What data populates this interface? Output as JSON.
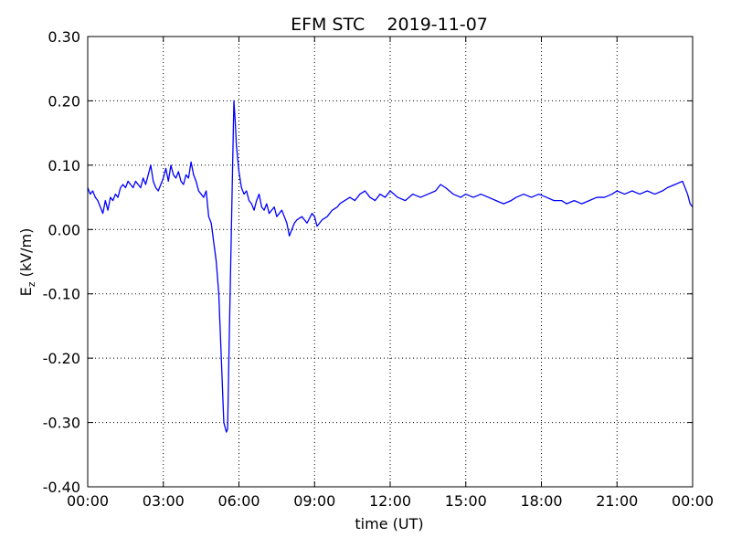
{
  "chart_data": {
    "type": "line",
    "title": "EFM STC    2019-11-07",
    "xlabel": "time (UT)",
    "ylabel_main": "E",
    "ylabel_sub": "z",
    "ylabel_unit": " (kV/m)",
    "xlim": [
      0,
      24
    ],
    "ylim": [
      -0.4,
      0.3
    ],
    "x_ticks": [
      0,
      3,
      6,
      9,
      12,
      15,
      18,
      21,
      24
    ],
    "x_tick_labels": [
      "00:00",
      "03:00",
      "06:00",
      "09:00",
      "12:00",
      "15:00",
      "18:00",
      "21:00",
      "00:00"
    ],
    "y_ticks": [
      0.3,
      0.2,
      0.1,
      0.0,
      -0.1,
      -0.2,
      -0.3,
      -0.4
    ],
    "y_tick_labels": [
      "0.30",
      "0.20",
      "0.10",
      "0.00",
      "-0.10",
      "-0.20",
      "-0.30",
      "-0.40"
    ],
    "grid": true,
    "line_color": "#0000ff",
    "series": [
      {
        "x": [
          0.0,
          0.1,
          0.2,
          0.3,
          0.4,
          0.5,
          0.6,
          0.7,
          0.8,
          0.9,
          1.0,
          1.1,
          1.2,
          1.3,
          1.4,
          1.5,
          1.6,
          1.7,
          1.8,
          1.9,
          2.0,
          2.1,
          2.2,
          2.3,
          2.4,
          2.5,
          2.6,
          2.7,
          2.8,
          2.9,
          3.0,
          3.1,
          3.2,
          3.3,
          3.4,
          3.5,
          3.6,
          3.7,
          3.8,
          3.9,
          4.0,
          4.1,
          4.2,
          4.3,
          4.4,
          4.5,
          4.6,
          4.7,
          4.8,
          4.9,
          5.0,
          5.1,
          5.2,
          5.3,
          5.4,
          5.5,
          5.55,
          5.6,
          5.65,
          5.7,
          5.75,
          5.8,
          5.85,
          5.9,
          6.0,
          6.1,
          6.2,
          6.3,
          6.4,
          6.5,
          6.6,
          6.7,
          6.8,
          6.9,
          7.0,
          7.1,
          7.2,
          7.3,
          7.4,
          7.5,
          7.6,
          7.7,
          7.8,
          7.9,
          8.0,
          8.1,
          8.2,
          8.3,
          8.5,
          8.7,
          8.9,
          9.0,
          9.1,
          9.3,
          9.5,
          9.7,
          9.9,
          10.0,
          10.2,
          10.4,
          10.6,
          10.8,
          11.0,
          11.2,
          11.4,
          11.6,
          11.8,
          12.0,
          12.3,
          12.6,
          12.9,
          13.2,
          13.5,
          13.8,
          14.0,
          14.2,
          14.5,
          14.8,
          15.0,
          15.3,
          15.6,
          15.9,
          16.2,
          16.5,
          16.8,
          17.0,
          17.3,
          17.6,
          17.9,
          18.2,
          18.5,
          18.8,
          19.0,
          19.3,
          19.6,
          19.9,
          20.2,
          20.5,
          20.8,
          21.0,
          21.3,
          21.6,
          21.9,
          22.2,
          22.5,
          22.8,
          23.0,
          23.3,
          23.6,
          23.8,
          23.9,
          24.0
        ],
        "y": [
          0.065,
          0.055,
          0.06,
          0.05,
          0.045,
          0.035,
          0.025,
          0.045,
          0.03,
          0.05,
          0.045,
          0.055,
          0.05,
          0.065,
          0.07,
          0.065,
          0.075,
          0.07,
          0.065,
          0.075,
          0.07,
          0.065,
          0.08,
          0.07,
          0.085,
          0.1,
          0.075,
          0.065,
          0.06,
          0.07,
          0.08,
          0.095,
          0.075,
          0.1,
          0.085,
          0.08,
          0.09,
          0.075,
          0.07,
          0.085,
          0.08,
          0.105,
          0.085,
          0.075,
          0.06,
          0.055,
          0.05,
          0.06,
          0.02,
          0.01,
          -0.02,
          -0.05,
          -0.1,
          -0.2,
          -0.3,
          -0.315,
          -0.31,
          -0.2,
          -0.1,
          0.0,
          0.1,
          0.2,
          0.17,
          0.13,
          0.09,
          0.065,
          0.055,
          0.06,
          0.045,
          0.04,
          0.03,
          0.045,
          0.055,
          0.035,
          0.03,
          0.04,
          0.025,
          0.03,
          0.035,
          0.02,
          0.025,
          0.03,
          0.02,
          0.01,
          -0.01,
          0.0,
          0.01,
          0.015,
          0.02,
          0.01,
          0.025,
          0.02,
          0.005,
          0.015,
          0.02,
          0.03,
          0.035,
          0.04,
          0.045,
          0.05,
          0.045,
          0.055,
          0.06,
          0.05,
          0.045,
          0.055,
          0.05,
          0.06,
          0.05,
          0.045,
          0.055,
          0.05,
          0.055,
          0.06,
          0.07,
          0.065,
          0.055,
          0.05,
          0.055,
          0.05,
          0.055,
          0.05,
          0.045,
          0.04,
          0.045,
          0.05,
          0.055,
          0.05,
          0.055,
          0.05,
          0.045,
          0.045,
          0.04,
          0.045,
          0.04,
          0.045,
          0.05,
          0.05,
          0.055,
          0.06,
          0.055,
          0.06,
          0.055,
          0.06,
          0.055,
          0.06,
          0.065,
          0.07,
          0.075,
          0.055,
          0.04,
          0.035
        ]
      }
    ]
  }
}
